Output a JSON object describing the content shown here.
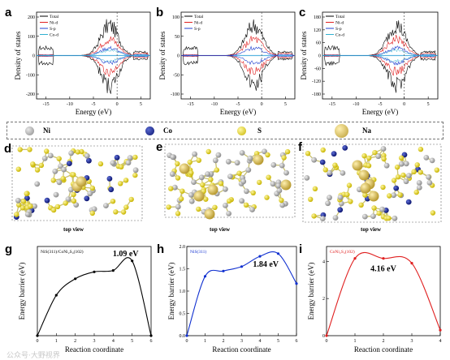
{
  "dos_panels": [
    {
      "letter": "a",
      "legend": [
        "Total",
        "Ni-d",
        "S-p",
        "Co-d"
      ],
      "legend_colors": [
        "#000000",
        "#e02020",
        "#2040d0",
        "#30b0d0"
      ],
      "yticks": [
        "200",
        "100",
        "0",
        "-100",
        "-200"
      ],
      "xticks": [
        "-15",
        "-10",
        "-5",
        "0",
        "5"
      ],
      "ylabel": "Density of states",
      "xlabel": "Energy (eV)"
    },
    {
      "letter": "b",
      "legend": [
        "Total",
        "Ni-d",
        "S-p"
      ],
      "legend_colors": [
        "#000000",
        "#e02020",
        "#2040d0"
      ],
      "yticks": [
        "100",
        "50",
        "0",
        "-50",
        "-100"
      ],
      "xticks": [
        "-15",
        "-10",
        "-5",
        "0",
        "5"
      ],
      "ylabel": "Density of states",
      "xlabel": "Energy (eV)"
    },
    {
      "letter": "c",
      "legend": [
        "Total",
        "Ni-d",
        "S-p",
        "Co-d"
      ],
      "legend_colors": [
        "#000000",
        "#e02020",
        "#2040d0",
        "#30b0d0"
      ],
      "yticks": [
        "180",
        "120",
        "60",
        "0",
        "-60",
        "-120",
        "-180"
      ],
      "xticks": [
        "-15",
        "-10",
        "-5",
        "0",
        "5"
      ],
      "ylabel": "Density of states",
      "xlabel": "Energy (eV)"
    }
  ],
  "element_legend": [
    {
      "symbol": "Ni",
      "color": "#a8a8a8"
    },
    {
      "symbol": "Co",
      "color": "#1a2a9a"
    },
    {
      "symbol": "S",
      "color": "#e8d830"
    },
    {
      "symbol": "Na",
      "color": "#d4b84a"
    }
  ],
  "structures": [
    {
      "letter": "d",
      "caption": "top view"
    },
    {
      "letter": "e",
      "caption": "top view"
    },
    {
      "letter": "f",
      "caption": "top view"
    }
  ],
  "watermark": "公众号·大野视界",
  "chart_data": [
    {
      "panel": "g",
      "type": "line",
      "title": "NiS(311)/CoNi₂S₄(102)",
      "annotation": "1.09 eV",
      "xlabel": "Reaction coordinate",
      "ylabel": "Energy barrier (eV)",
      "color": "#000000",
      "xlim": [
        0,
        6
      ],
      "ylim": [
        0,
        1.3
      ],
      "xticks": [
        "0",
        "1",
        "2",
        "3",
        "4",
        "5",
        "6"
      ],
      "yticks": [],
      "x": [
        0,
        1,
        2,
        3,
        4,
        5,
        6
      ],
      "y": [
        0,
        0.59,
        0.83,
        0.93,
        0.95,
        1.09,
        0
      ]
    },
    {
      "panel": "h",
      "type": "line",
      "title": "NiS(311)",
      "annotation": "1.84 eV",
      "xlabel": "Reaction coordinate",
      "ylabel": "Energy barrier (eV)",
      "color": "#1030d0",
      "xlim": [
        0,
        6
      ],
      "ylim": [
        0,
        2.0
      ],
      "xticks": [
        "0",
        "1",
        "2",
        "3",
        "4",
        "5",
        "6"
      ],
      "yticks": [
        "0.0",
        "0.5",
        "1.0",
        "1.5",
        "2.0"
      ],
      "x": [
        0,
        1,
        2,
        3,
        4,
        5,
        6
      ],
      "y": [
        0,
        1.33,
        1.45,
        1.55,
        1.78,
        1.84,
        1.17
      ]
    },
    {
      "panel": "i",
      "type": "line",
      "title": "CoNi₂S₄(102)",
      "annotation": "4.16 eV",
      "xlabel": "Reaction coordinate",
      "ylabel": "Energy barrier (eV)",
      "color": "#e02020",
      "xlim": [
        0,
        4
      ],
      "ylim": [
        0,
        4.8
      ],
      "xticks": [
        "0",
        "1",
        "2",
        "3",
        "4"
      ],
      "yticks": [
        "0",
        "2",
        "4"
      ],
      "x": [
        0,
        1,
        2,
        3,
        4
      ],
      "y": [
        0,
        4.16,
        4.16,
        3.9,
        0.3
      ]
    }
  ]
}
